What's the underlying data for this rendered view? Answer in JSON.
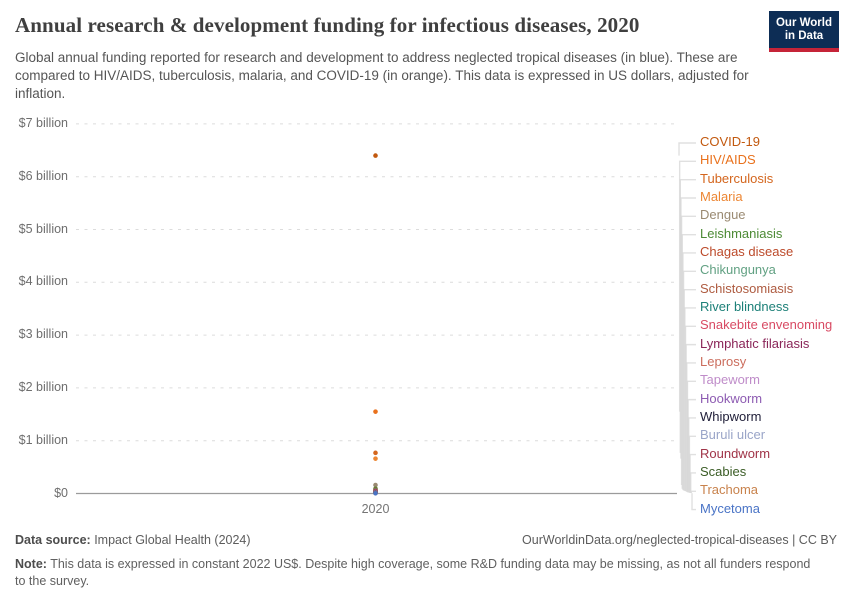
{
  "header": {
    "title": "Annual research & development funding for infectious diseases, 2020",
    "subtitle": "Global annual funding reported for research and development to address neglected tropical diseases (in blue). These are compared to HIV/AIDS, tuberculosis, malaria, and COVID-19 (in orange). This data is expressed in US dollars, adjusted for inflation.",
    "logo": {
      "line1": "Our World",
      "line2": "in Data",
      "bg_color": "#0d2d55",
      "stripe_color": "#c52438"
    }
  },
  "chart_data": {
    "type": "scatter",
    "title": "Annual research & development funding for infectious diseases, 2020",
    "x_categories": [
      "2020"
    ],
    "x_tick_label": "2020",
    "y_axis": {
      "unit": "US$ billions",
      "range_billion": [
        0,
        7
      ],
      "ticks": [
        {
          "label": "$0",
          "value": 0
        },
        {
          "label": "$1 billion",
          "value": 1
        },
        {
          "label": "$2 billion",
          "value": 2
        },
        {
          "label": "$3 billion",
          "value": 3
        },
        {
          "label": "$4 billion",
          "value": 4
        },
        {
          "label": "$5 billion",
          "value": 5
        },
        {
          "label": "$6 billion",
          "value": 6
        },
        {
          "label": "$7 billion",
          "value": 7
        }
      ]
    },
    "grid": "dashed horizontal gridlines, solid zero axis",
    "legend_position": "right",
    "series": [
      {
        "name": "COVID-19",
        "value_billion_usd": 6.4,
        "color": "#c2590f",
        "group": "comparison (orange)"
      },
      {
        "name": "HIV/AIDS",
        "value_billion_usd": 1.55,
        "color": "#e9711c",
        "group": "comparison (orange)"
      },
      {
        "name": "Tuberculosis",
        "value_billion_usd": 0.77,
        "color": "#d4661e",
        "group": "comparison (orange)"
      },
      {
        "name": "Malaria",
        "value_billion_usd": 0.66,
        "color": "#ec8633",
        "group": "comparison (orange)"
      },
      {
        "name": "Dengue",
        "value_billion_usd": 0.16,
        "color": "#9a8a72",
        "group": "neglected tropical disease"
      },
      {
        "name": "Leishmaniasis",
        "value_billion_usd": 0.09,
        "color": "#4c8a35",
        "group": "neglected tropical disease"
      },
      {
        "name": "Chagas disease",
        "value_billion_usd": 0.07,
        "color": "#bc4a2a",
        "group": "neglected tropical disease"
      },
      {
        "name": "Chikungunya",
        "value_billion_usd": 0.06,
        "color": "#62a183",
        "group": "neglected tropical disease"
      },
      {
        "name": "Schistosomiasis",
        "value_billion_usd": 0.055,
        "color": "#ae5b40",
        "group": "neglected tropical disease"
      },
      {
        "name": "River blindness",
        "value_billion_usd": 0.05,
        "color": "#1d8078",
        "group": "neglected tropical disease"
      },
      {
        "name": "Snakebite envenoming",
        "value_billion_usd": 0.045,
        "color": "#d84a63",
        "group": "neglected tropical disease"
      },
      {
        "name": "Lymphatic filariasis",
        "value_billion_usd": 0.04,
        "color": "#8a2558",
        "group": "neglected tropical disease"
      },
      {
        "name": "Leprosy",
        "value_billion_usd": 0.03,
        "color": "#cb6d5d",
        "group": "neglected tropical disease"
      },
      {
        "name": "Tapeworm",
        "value_billion_usd": 0.025,
        "color": "#bf8cc9",
        "group": "neglected tropical disease"
      },
      {
        "name": "Hookworm",
        "value_billion_usd": 0.02,
        "color": "#8d5bb2",
        "group": "neglected tropical disease"
      },
      {
        "name": "Whipworm",
        "value_billion_usd": 0.018,
        "color": "#21203a",
        "group": "neglected tropical disease"
      },
      {
        "name": "Buruli ulcer",
        "value_billion_usd": 0.015,
        "color": "#9aa5c8",
        "group": "neglected tropical disease"
      },
      {
        "name": "Roundworm",
        "value_billion_usd": 0.012,
        "color": "#a03448",
        "group": "neglected tropical disease"
      },
      {
        "name": "Scabies",
        "value_billion_usd": 0.009,
        "color": "#3a5c25",
        "group": "neglected tropical disease"
      },
      {
        "name": "Trachoma",
        "value_billion_usd": 0.007,
        "color": "#c8824c",
        "group": "neglected tropical disease"
      },
      {
        "name": "Mycetoma",
        "value_billion_usd": 0.004,
        "color": "#4a74c6",
        "group": "neglected tropical disease"
      }
    ]
  },
  "footer": {
    "source_label": "Data source:",
    "source_value": " Impact Global Health (2024)",
    "link_text": "OurWorldinData.org/neglected-tropical-diseases | CC BY",
    "note_label": "Note:",
    "note_value": " This data is expressed in constant 2022 US$. Despite high coverage, some R&D funding data may be missing, as not all funders respond to the survey."
  }
}
